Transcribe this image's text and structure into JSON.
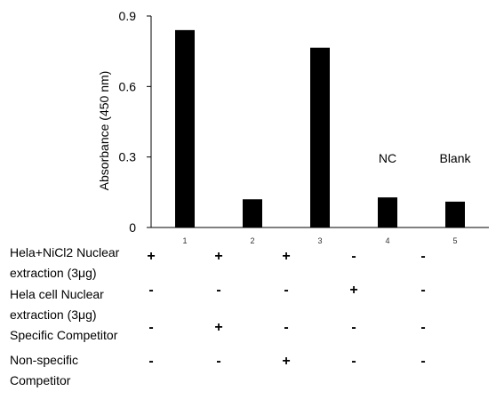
{
  "chart_data": {
    "type": "bar",
    "ylabel": "Absorbance (450 nm)",
    "ylim": [
      0,
      0.9
    ],
    "yticks": [
      "0",
      "0.3",
      "0.6",
      "0.9"
    ],
    "categories": [
      "1",
      "2",
      "3",
      "4",
      "5"
    ],
    "values": [
      0.84,
      0.12,
      0.765,
      0.128,
      0.11
    ],
    "bar_color": "#000000",
    "annotations": [
      {
        "category": "4",
        "text": "NC"
      },
      {
        "category": "5",
        "text": "Blank"
      }
    ]
  },
  "conditions": [
    {
      "label_lines": [
        "Hela+NiCl2 Nuclear",
        "extraction (3μg)"
      ],
      "signs": [
        "+",
        "+",
        "+",
        "-",
        "-"
      ]
    },
    {
      "label_lines": [
        "Hela cell Nuclear",
        "extraction (3μg)"
      ],
      "signs": [
        "-",
        "-",
        "-",
        "+",
        "-"
      ]
    },
    {
      "label_lines": [
        "Specific Competitor"
      ],
      "signs": [
        "-",
        "+",
        "-",
        "-",
        "-"
      ]
    },
    {
      "label_lines": [
        "Non-specific",
        "Competitor"
      ],
      "signs": [
        "-",
        "-",
        "+",
        "-",
        "-"
      ]
    }
  ]
}
